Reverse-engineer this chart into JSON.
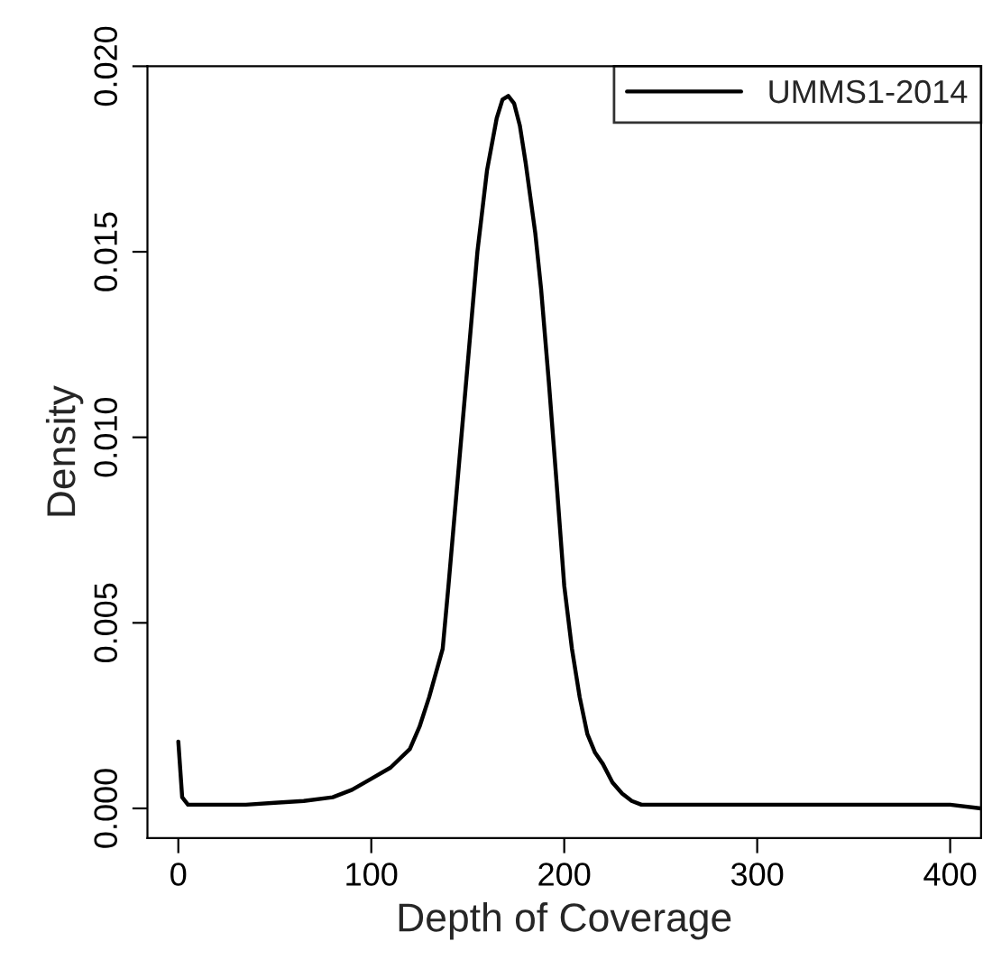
{
  "chart_data": {
    "type": "line",
    "xlabel": "Depth of Coverage",
    "ylabel": "Density",
    "x": [
      0,
      2,
      5,
      10,
      20,
      35,
      50,
      65,
      80,
      90,
      100,
      110,
      120,
      125,
      130,
      137,
      140,
      145,
      150,
      155,
      160,
      165,
      168,
      171,
      174,
      177,
      180,
      185,
      188,
      192,
      196,
      200,
      204,
      208,
      212,
      216,
      220,
      225,
      230,
      235,
      240,
      260,
      300,
      350,
      400,
      416
    ],
    "series": [
      {
        "name": "UMMS1-2014",
        "color": "#000000",
        "values": [
          0.0018,
          0.0003,
          0.0001,
          0.0001,
          0.0001,
          0.0001,
          0.00015,
          0.0002,
          0.0003,
          0.0005,
          0.0008,
          0.0011,
          0.0016,
          0.0022,
          0.003,
          0.0043,
          0.006,
          0.009,
          0.012,
          0.015,
          0.0172,
          0.0186,
          0.0191,
          0.0192,
          0.019,
          0.0184,
          0.0174,
          0.0155,
          0.014,
          0.0115,
          0.0088,
          0.006,
          0.0043,
          0.003,
          0.002,
          0.0015,
          0.0012,
          0.0007,
          0.0004,
          0.0002,
          0.0001,
          0.0001,
          0.0001,
          0.0001,
          0.0001,
          0.0
        ]
      }
    ],
    "xlim": [
      -16,
      416
    ],
    "ylim": [
      -0.0008,
      0.02
    ],
    "xticks": [
      0,
      100,
      200,
      300,
      400
    ],
    "yticks": [
      {
        "value": 0,
        "label": "0.000"
      },
      {
        "value": 0.005,
        "label": "0.005"
      },
      {
        "value": 0.01,
        "label": "0.010"
      },
      {
        "value": 0.015,
        "label": "0.015"
      },
      {
        "value": 0.02,
        "label": "0.020"
      }
    ],
    "legend": "top right",
    "grid": false,
    "marker": "none",
    "line_style": "solid"
  }
}
